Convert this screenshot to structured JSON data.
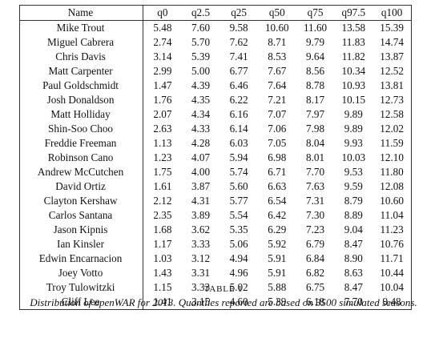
{
  "table": {
    "columns": [
      "Name",
      "q0",
      "q2.5",
      "q25",
      "q50",
      "q75",
      "q97.5",
      "q100"
    ],
    "rows": [
      [
        "Mike Trout",
        "5.48",
        "7.60",
        "9.58",
        "10.60",
        "11.60",
        "13.58",
        "15.39"
      ],
      [
        "Miguel Cabrera",
        "2.74",
        "5.70",
        "7.62",
        "8.71",
        "9.79",
        "11.83",
        "14.74"
      ],
      [
        "Chris Davis",
        "3.14",
        "5.39",
        "7.41",
        "8.53",
        "9.64",
        "11.82",
        "13.87"
      ],
      [
        "Matt Carpenter",
        "2.99",
        "5.00",
        "6.77",
        "7.67",
        "8.56",
        "10.34",
        "12.52"
      ],
      [
        "Paul Goldschmidt",
        "1.47",
        "4.39",
        "6.46",
        "7.64",
        "8.78",
        "10.93",
        "13.81"
      ],
      [
        "Josh Donaldson",
        "1.76",
        "4.35",
        "6.22",
        "7.21",
        "8.17",
        "10.15",
        "12.73"
      ],
      [
        "Matt Holliday",
        "2.07",
        "4.34",
        "6.16",
        "7.07",
        "7.97",
        "9.89",
        "12.58"
      ],
      [
        "Shin-Soo Choo",
        "2.63",
        "4.33",
        "6.14",
        "7.06",
        "7.98",
        "9.89",
        "12.02"
      ],
      [
        "Freddie Freeman",
        "1.13",
        "4.28",
        "6.03",
        "7.05",
        "8.04",
        "9.93",
        "11.59"
      ],
      [
        "Robinson Cano",
        "1.23",
        "4.07",
        "5.94",
        "6.98",
        "8.01",
        "10.03",
        "12.10"
      ],
      [
        "Andrew McCutchen",
        "1.75",
        "4.00",
        "5.74",
        "6.71",
        "7.70",
        "9.53",
        "11.80"
      ],
      [
        "David Ortiz",
        "1.61",
        "3.87",
        "5.60",
        "6.63",
        "7.63",
        "9.59",
        "12.08"
      ],
      [
        "Clayton Kershaw",
        "2.12",
        "4.31",
        "5.77",
        "6.54",
        "7.31",
        "8.79",
        "10.60"
      ],
      [
        "Carlos Santana",
        "2.35",
        "3.89",
        "5.54",
        "6.42",
        "7.30",
        "8.89",
        "11.04"
      ],
      [
        "Jason Kipnis",
        "1.68",
        "3.62",
        "5.35",
        "6.29",
        "7.23",
        "9.04",
        "11.23"
      ],
      [
        "Ian Kinsler",
        "1.17",
        "3.33",
        "5.06",
        "5.92",
        "6.79",
        "8.47",
        "10.76"
      ],
      [
        "Edwin Encarnacion",
        "1.03",
        "3.12",
        "4.94",
        "5.91",
        "6.84",
        "8.90",
        "11.71"
      ],
      [
        "Joey Votto",
        "1.43",
        "3.31",
        "4.96",
        "5.91",
        "6.82",
        "8.63",
        "10.44"
      ],
      [
        "Troy Tulowitzki",
        "1.15",
        "3.33",
        "5.02",
        "5.88",
        "6.75",
        "8.47",
        "10.04"
      ],
      [
        "Cliff Lee",
        "1.41",
        "3.15",
        "4.60",
        "5.39",
        "6.18",
        "7.70",
        "9.48"
      ]
    ]
  },
  "caption": {
    "label": "Table 1",
    "text": "Distribution of openWAR for 2013. Quantiles reported are based on 3500 simulated seasons."
  }
}
